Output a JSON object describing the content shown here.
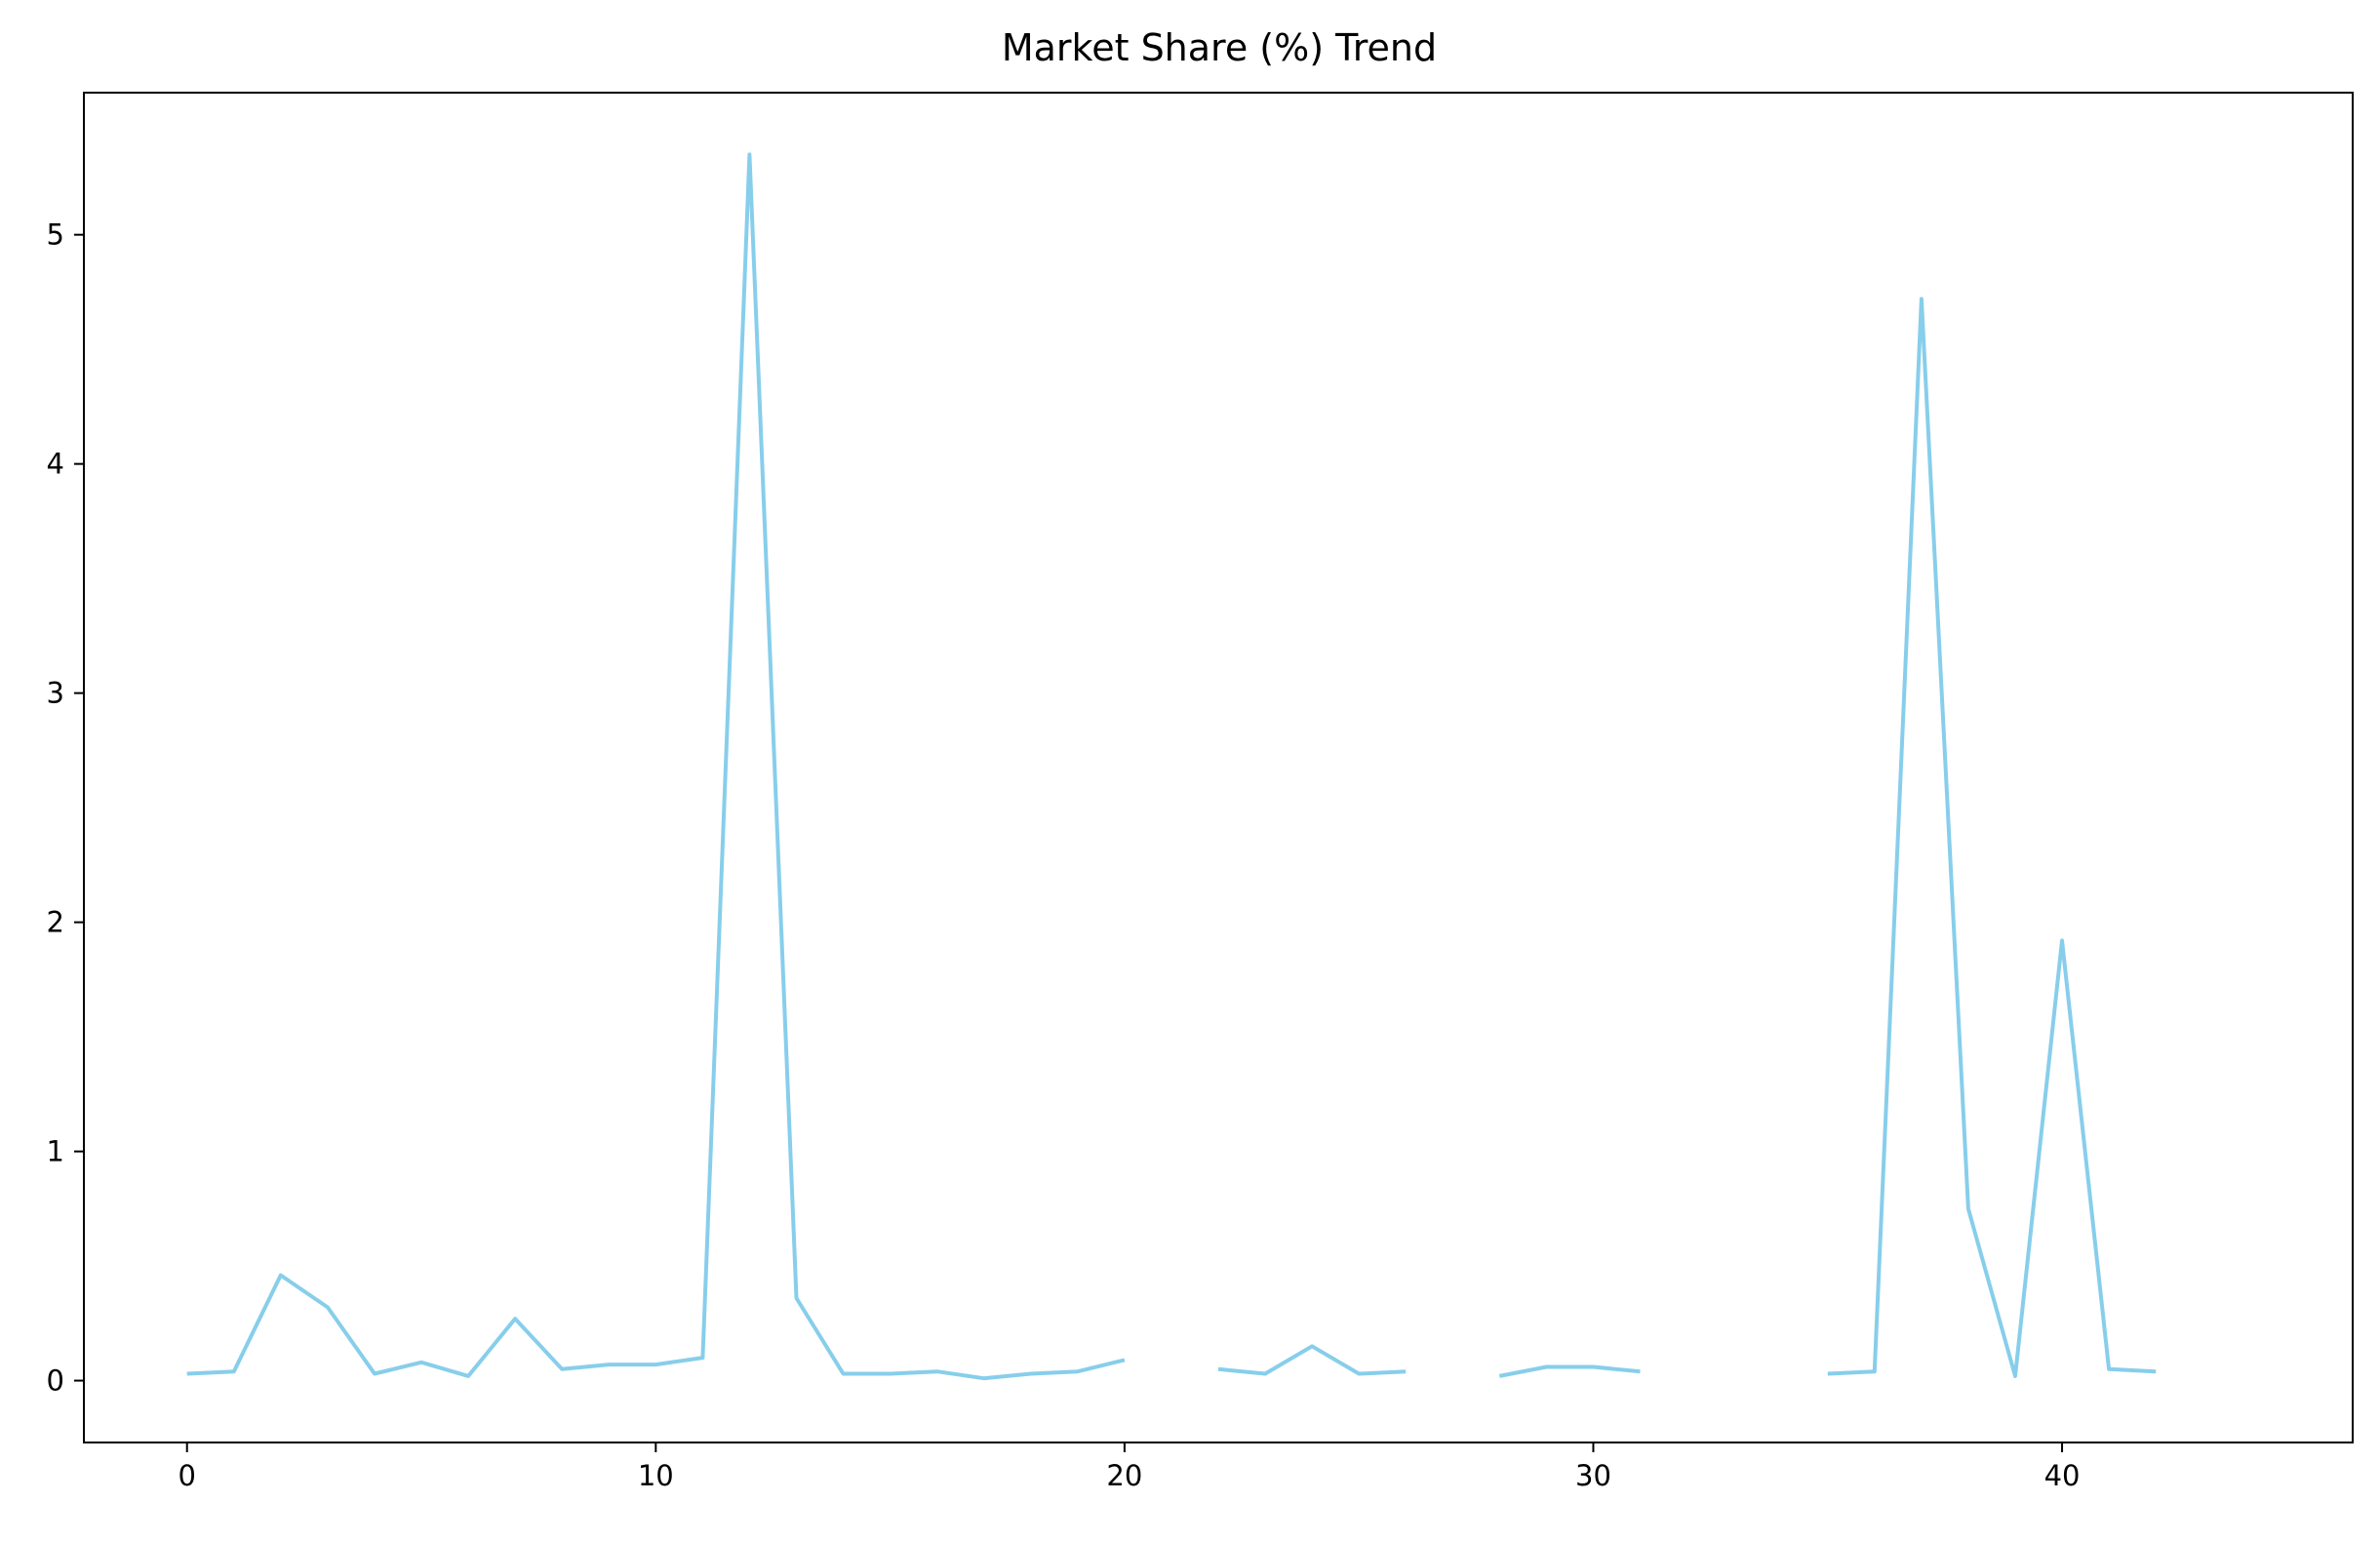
{
  "chart_data": {
    "type": "line",
    "title": "Market Share (%) Trend",
    "xlabel": "",
    "ylabel": "",
    "xlim": [
      -2.2,
      46.2
    ],
    "ylim": [
      -0.27,
      5.62
    ],
    "xticks": [
      0,
      10,
      20,
      30,
      40
    ],
    "yticks": [
      0,
      1,
      2,
      3,
      4,
      5
    ],
    "grid": false,
    "line_color": "#87CEEB",
    "series": [
      {
        "x": [
          0,
          1,
          2,
          3,
          4,
          5,
          6,
          7,
          8,
          9,
          10,
          11,
          12,
          13,
          14,
          15,
          16,
          17,
          18,
          19,
          20,
          21,
          22,
          23,
          24,
          25,
          26,
          27,
          28,
          29,
          30,
          31,
          32,
          33,
          34,
          35,
          36,
          37,
          38,
          39,
          40,
          41,
          42
        ],
        "values": [
          0.03,
          0.04,
          0.46,
          0.32,
          0.03,
          0.08,
          0.02,
          0.27,
          0.05,
          0.07,
          0.07,
          0.1,
          5.35,
          0.36,
          0.03,
          0.03,
          0.04,
          0.01,
          0.03,
          0.04,
          0.09,
          null,
          0.05,
          0.03,
          0.15,
          0.03,
          0.04,
          null,
          0.02,
          0.06,
          0.06,
          0.04,
          null,
          null,
          null,
          0.03,
          0.04,
          4.72,
          0.75,
          0.02,
          1.92,
          0.05,
          0.04
        ]
      }
    ]
  }
}
